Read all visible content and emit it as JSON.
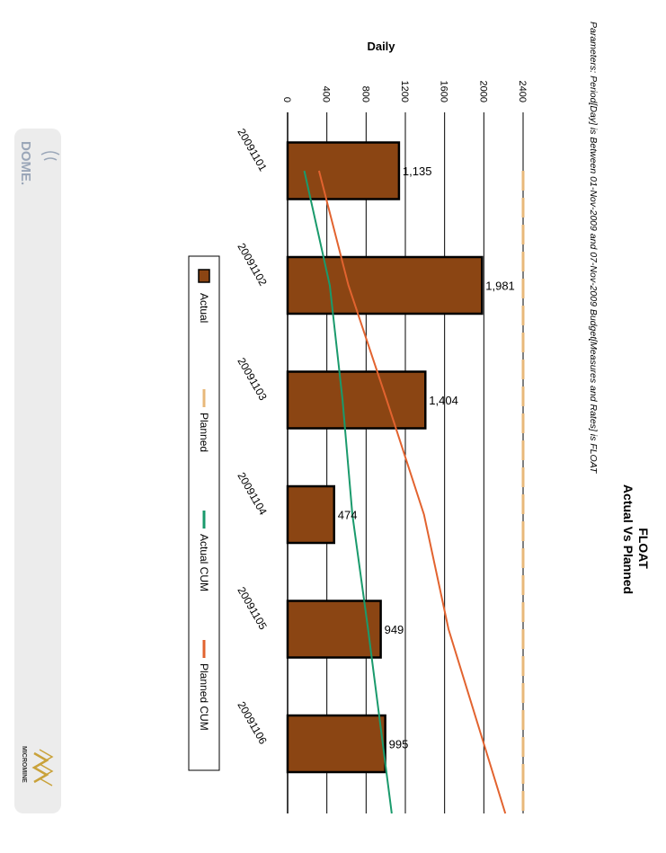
{
  "header": {
    "title": "FLOAT",
    "subtitle": "Actual Vs Planned",
    "parameters": "Parameters: Period[Day] is Between 01-Nov-2009 and 07-Nov-2009 Budget[Measures and Rates] is FLOAT"
  },
  "branding": {
    "dome_logo": "DOME.",
    "micromine_logo": "MICROMINE"
  },
  "chart_data": {
    "type": "bar",
    "orientation": "rotated-90-clockwise",
    "axis_label": "Daily",
    "categories": [
      "20091101",
      "20091102",
      "20091103",
      "20091104",
      "20091105",
      "20091106"
    ],
    "tick_labels": [
      "0",
      "400",
      "800",
      "1200",
      "1600",
      "2000",
      "2400"
    ],
    "ylim": [
      0,
      2400
    ],
    "grid": true,
    "legend_position": "bottom",
    "series": [
      {
        "name": "Actual",
        "type": "bar",
        "values": [
          1135,
          1981,
          1404,
          474,
          949,
          995
        ],
        "labels": [
          "1,135",
          "1,981",
          "1,404",
          "474",
          "949",
          "995"
        ],
        "color": "#8b4513"
      },
      {
        "name": "Planned",
        "type": "line-dashed",
        "values": [
          2400,
          2400,
          2400,
          2400,
          2400,
          2400
        ],
        "color": "#e8b87a"
      },
      {
        "name": "Actual CUM",
        "type": "line",
        "values": [
          170,
          430,
          560,
          660,
          820,
          970
        ],
        "color": "#1a9a6c"
      },
      {
        "name": "Planned CUM",
        "type": "line",
        "values": [
          320,
          620,
          1010,
          1390,
          1640,
          2000
        ],
        "color": "#e2632f"
      }
    ]
  }
}
